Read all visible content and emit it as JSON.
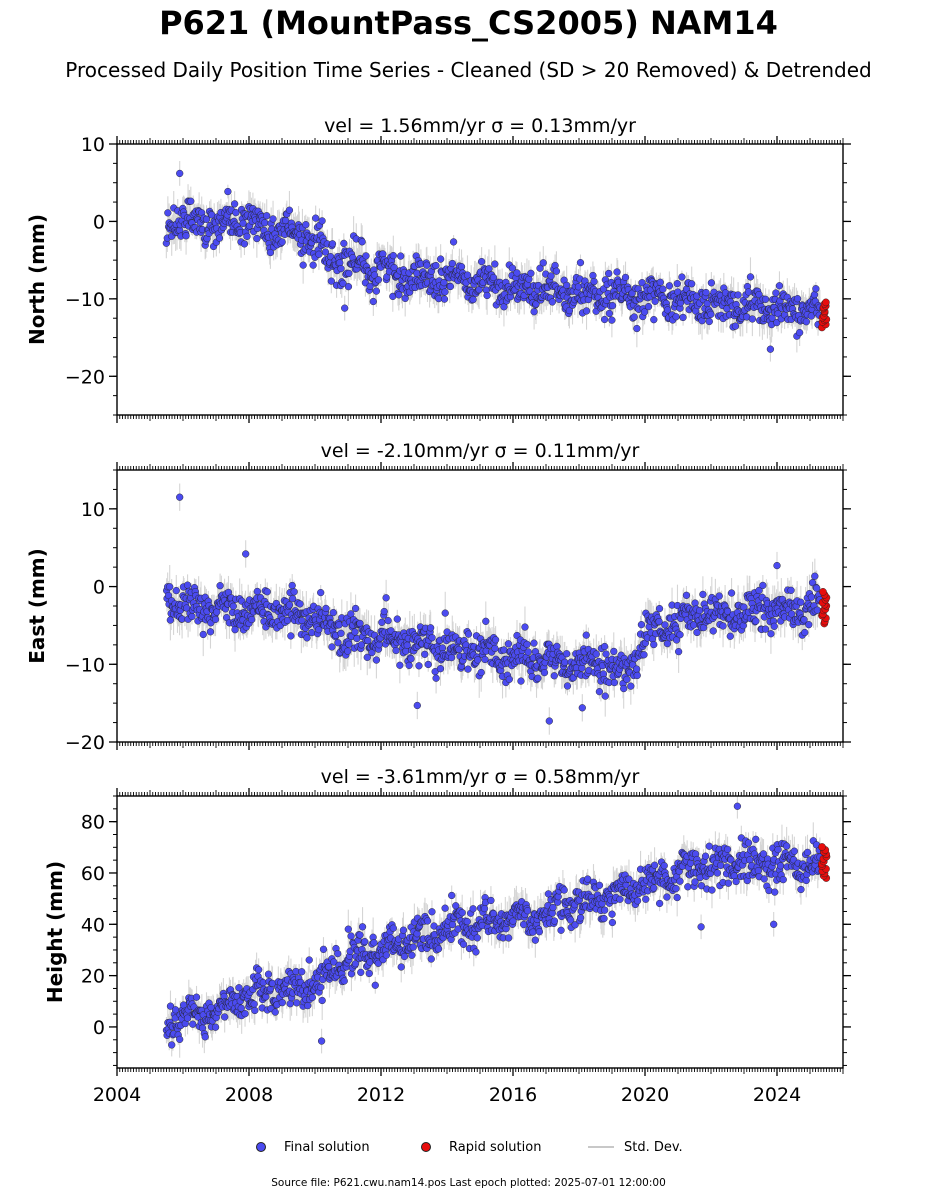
{
  "title": "P621 (MountPass_CS2005) NAM14",
  "subtitle": "Processed Daily Position Time Series - Cleaned (SD > 20 Removed) & Detrended",
  "legend": {
    "final": "Final solution",
    "rapid": "Rapid solution",
    "std": "Std. Dev."
  },
  "footer": "Source file: P621.cwu.nam14.pos  Last epoch plotted: 2025-07-01 12:00:00",
  "colors": {
    "final": "#4b4bf0",
    "rapid": "#e80d0d",
    "std": "#c8c8c8",
    "marker_edge": "#222222"
  },
  "chart_data": [
    {
      "type": "scatter",
      "panel": "north",
      "title": "vel = 1.56mm/yr   σ = 0.13mm/yr",
      "ylabel": "North (mm)",
      "xlim": [
        2004,
        2026
      ],
      "ylim": [
        -25,
        10
      ],
      "yticks": [
        10,
        0,
        -10,
        -20
      ],
      "ytick_labels": [
        "10",
        "0",
        "−10",
        "−20"
      ],
      "show_xlabels": false,
      "trend": [
        [
          2005.5,
          0.5
        ],
        [
          2008.0,
          -0.5
        ],
        [
          2009.5,
          -1.5
        ],
        [
          2010.5,
          -4.5
        ],
        [
          2011.0,
          -5.5
        ],
        [
          2013.0,
          -7.0
        ],
        [
          2016.0,
          -8.5
        ],
        [
          2019.0,
          -9.5
        ],
        [
          2022.0,
          -10.5
        ],
        [
          2025.3,
          -11.5
        ]
      ],
      "scatter_amp": 2.2,
      "std_amp": 2.0,
      "outliers": [
        [
          2005.9,
          6.2
        ],
        [
          2010.9,
          -11.2
        ],
        [
          2023.8,
          -16.5
        ]
      ],
      "rapid": {
        "x_range": [
          2025.35,
          2025.5
        ],
        "y_center": -12.0,
        "y_spread": 1.6
      }
    },
    {
      "type": "scatter",
      "panel": "east",
      "title": "vel = -2.10mm/yr   σ = 0.11mm/yr",
      "ylabel": "East (mm)",
      "xlim": [
        2004,
        2026
      ],
      "ylim": [
        -20,
        15
      ],
      "yticks": [
        10,
        0,
        -10,
        -20
      ],
      "ytick_labels": [
        "10",
        "0",
        "−10",
        "−20"
      ],
      "show_xlabels": false,
      "trend": [
        [
          2005.5,
          -0.5
        ],
        [
          2006.0,
          -2.5
        ],
        [
          2008.0,
          -3.0
        ],
        [
          2010.0,
          -4.0
        ],
        [
          2011.0,
          -6.5
        ],
        [
          2013.0,
          -7.5
        ],
        [
          2016.0,
          -9.0
        ],
        [
          2019.0,
          -10.5
        ],
        [
          2019.5,
          -11.5
        ],
        [
          2020.0,
          -6.0
        ],
        [
          2022.0,
          -3.5
        ],
        [
          2025.3,
          -2.5
        ]
      ],
      "scatter_amp": 2.3,
      "std_amp": 2.2,
      "outliers": [
        [
          2005.9,
          11.5
        ],
        [
          2007.9,
          4.2
        ],
        [
          2013.1,
          -15.3
        ],
        [
          2017.1,
          -17.3
        ],
        [
          2018.1,
          -15.6
        ],
        [
          2024.0,
          2.7
        ]
      ],
      "rapid": {
        "x_range": [
          2025.35,
          2025.5
        ],
        "y_center": -2.7,
        "y_spread": 2.0
      }
    },
    {
      "type": "scatter",
      "panel": "height",
      "title": "vel = -3.61mm/yr   σ = 0.58mm/yr",
      "ylabel": "Height (mm)",
      "xlim": [
        2004,
        2026
      ],
      "ylim": [
        -16,
        90
      ],
      "yticks": [
        80,
        60,
        40,
        20,
        0
      ],
      "ytick_labels": [
        "80",
        "60",
        "40",
        "20",
        "0"
      ],
      "show_xlabels": true,
      "xticks": [
        2004,
        2008,
        2012,
        2016,
        2020,
        2024
      ],
      "xtick_labels": [
        "2004",
        "2008",
        "2012",
        "2016",
        "2020",
        "2024"
      ],
      "trend": [
        [
          2005.5,
          0
        ],
        [
          2007.0,
          7
        ],
        [
          2008.5,
          14
        ],
        [
          2010.0,
          16
        ],
        [
          2010.5,
          24
        ],
        [
          2012.0,
          30
        ],
        [
          2014.0,
          38
        ],
        [
          2016.0,
          42
        ],
        [
          2018.0,
          48
        ],
        [
          2020.0,
          55
        ],
        [
          2021.0,
          60
        ],
        [
          2023.0,
          64
        ],
        [
          2025.3,
          63
        ]
      ],
      "scatter_amp": 7,
      "std_amp": 6,
      "outliers": [
        [
          2010.2,
          -5.5
        ],
        [
          2022.8,
          86
        ],
        [
          2023.9,
          40
        ],
        [
          2021.7,
          39
        ]
      ],
      "rapid": {
        "x_range": [
          2025.35,
          2025.5
        ],
        "y_center": 64,
        "y_spread": 6
      }
    }
  ]
}
